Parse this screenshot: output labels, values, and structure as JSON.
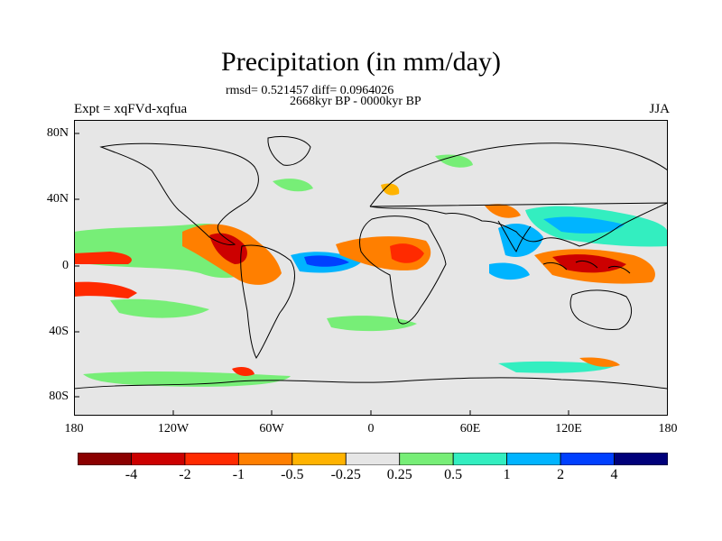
{
  "header": {
    "title": "Precipitation (in mm/day)",
    "stats": "rmsd= 0.521457 diff= 0.0964026",
    "period": "2668kyr BP - 0000kyr BP",
    "experiment": "Expt = xqFVd-xqfua",
    "season": "JJA"
  },
  "axes": {
    "y_ticks": [
      "80N",
      "40N",
      "0",
      "40S",
      "80S"
    ],
    "x_ticks": [
      "180",
      "120W",
      "60W",
      "0",
      "60E",
      "120E",
      "180"
    ]
  },
  "colorbar": {
    "labels": [
      "-4",
      "-2",
      "-1",
      "-0.5",
      "-0.25",
      "0.25",
      "0.5",
      "1",
      "2",
      "4"
    ],
    "colors": [
      "#8b0000",
      "#cc0000",
      "#ff2a00",
      "#ff7f00",
      "#ffb300",
      "#e6e6e6",
      "#77ee77",
      "#33eec0",
      "#00b4ff",
      "#0040ff",
      "#00007a"
    ]
  },
  "map_colors": {
    "background": "#e6e6e6",
    "coast": "#000000"
  }
}
